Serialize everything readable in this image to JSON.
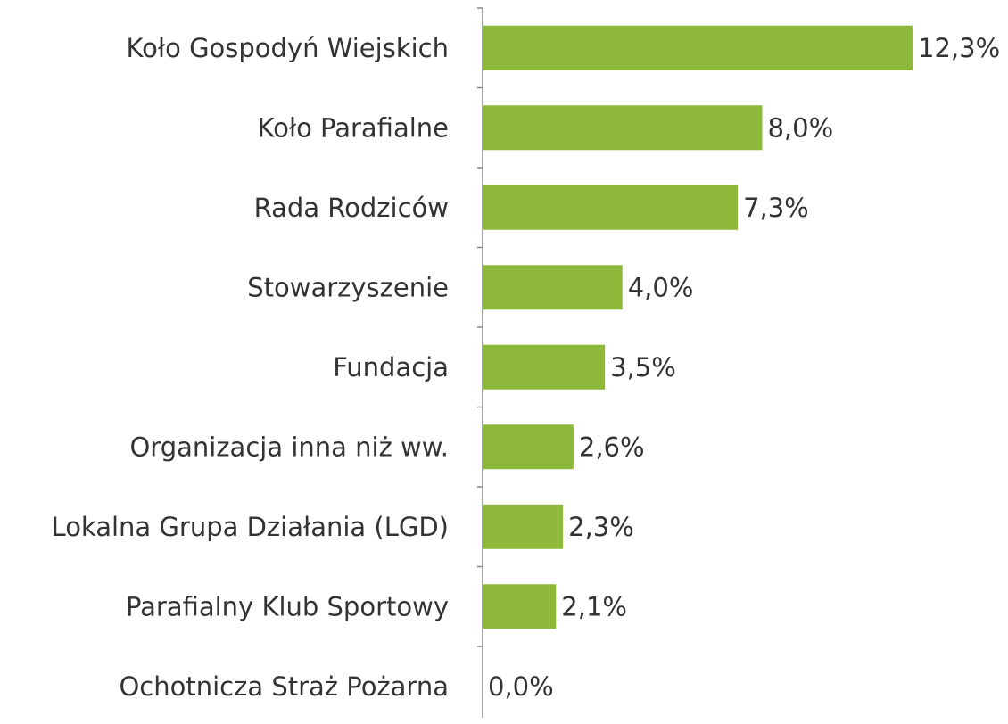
{
  "chart_data": {
    "type": "bar",
    "orientation": "horizontal",
    "categories": [
      "Koło Gospodyń Wiejskich",
      "Koło Parafialne",
      "Rada Rodziców",
      "Stowarzyszenie",
      "Fundacja",
      "Organizacja inna niż ww.",
      "Lokalna Grupa Działania (LGD)",
      "Parafialny Klub Sportowy",
      "Ochotnicza Straż Pożarna"
    ],
    "values": [
      12.3,
      8.0,
      7.3,
      4.0,
      3.5,
      2.6,
      2.3,
      2.1,
      0.0
    ],
    "value_labels": [
      "12,3%",
      "8,0%",
      "7,3%",
      "4,0%",
      "3,5%",
      "2,6%",
      "2,3%",
      "2,1%",
      "0,0%"
    ],
    "color": "#8db83a"
  }
}
